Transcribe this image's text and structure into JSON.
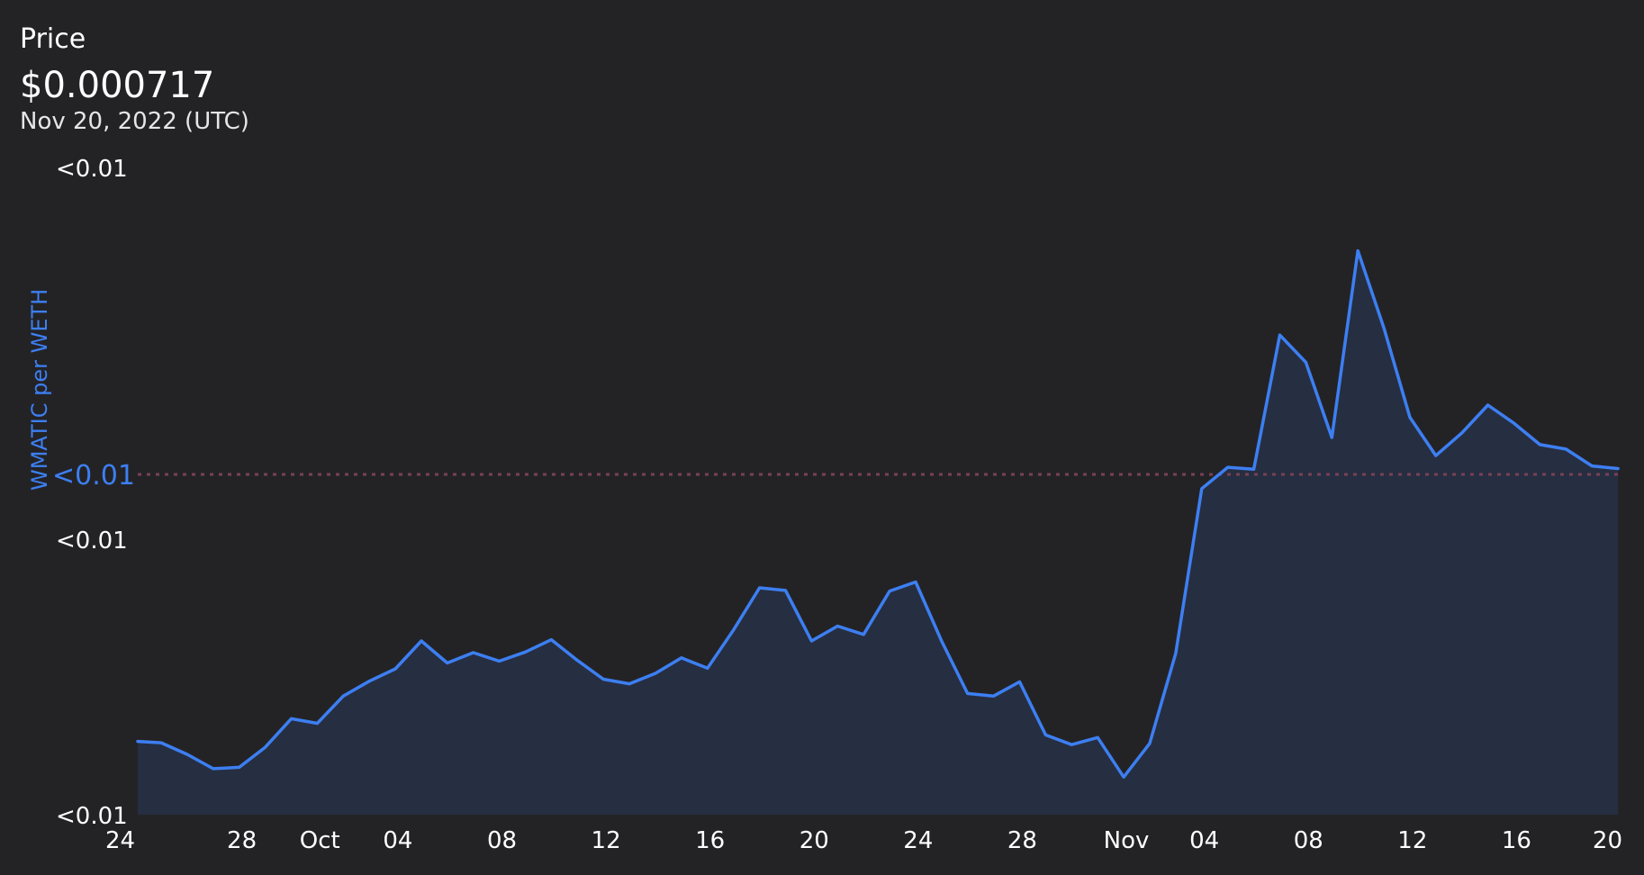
{
  "header": {
    "label": "Price",
    "price": "$0.000717",
    "date": "Nov 20, 2022 (UTC)"
  },
  "colors": {
    "line": "#3d7ff2",
    "area": "#262e41",
    "reference": "#7a4055",
    "background": "#232326"
  },
  "chart_data": {
    "type": "area",
    "ylabel": "WMATIC per WETH",
    "y_tick_labels": [
      "<0.01",
      "<0.01",
      "<0.01"
    ],
    "reference_label": "<0.01",
    "x_tick_labels": [
      "24",
      "28",
      "Oct",
      "04",
      "08",
      "12",
      "16",
      "20",
      "24",
      "28",
      "Nov",
      "04",
      "08",
      "12",
      "16",
      "20"
    ],
    "x_tick_days": [
      0,
      4,
      7,
      10,
      14,
      18,
      22,
      26,
      30,
      34,
      38,
      41,
      45,
      49,
      53,
      57
    ],
    "start_date": "2022-09-24",
    "end_date": "2022-11-20",
    "ylim": [
      0,
      1
    ],
    "reference_value": 0.525,
    "x": [
      0,
      0.9,
      1.9,
      2.9,
      3.9,
      4.9,
      5.9,
      6.9,
      7.9,
      8.9,
      9.9,
      10.9,
      11.9,
      12.9,
      13.9,
      14.9,
      15.9,
      16.9,
      17.9,
      18.9,
      19.9,
      20.9,
      21.9,
      22.9,
      23.9,
      24.9,
      25.9,
      26.9,
      27.9,
      28.9,
      29.9,
      30.9,
      31.9,
      32.9,
      33.9,
      34.9,
      35.9,
      36.9,
      37.9,
      38.9,
      39.9,
      40.9,
      41.9,
      42.9,
      43.9,
      44.9,
      45.9,
      46.9,
      47.9,
      48.9,
      49.9,
      50.9,
      51.9,
      52.9,
      53.9,
      54.9,
      55.9,
      56.9
    ],
    "values": [
      0.113,
      0.111,
      0.093,
      0.071,
      0.073,
      0.104,
      0.148,
      0.141,
      0.183,
      0.206,
      0.225,
      0.268,
      0.234,
      0.25,
      0.237,
      0.251,
      0.27,
      0.238,
      0.209,
      0.202,
      0.218,
      0.242,
      0.226,
      0.285,
      0.35,
      0.346,
      0.268,
      0.291,
      0.278,
      0.345,
      0.359,
      0.268,
      0.187,
      0.183,
      0.205,
      0.123,
      0.108,
      0.119,
      0.058,
      0.11,
      0.249,
      0.503,
      0.536,
      0.533,
      0.74,
      0.698,
      0.582,
      0.87,
      0.751,
      0.613,
      0.554,
      0.589,
      0.632,
      0.604,
      0.571,
      0.564,
      0.538,
      0.534
    ]
  }
}
